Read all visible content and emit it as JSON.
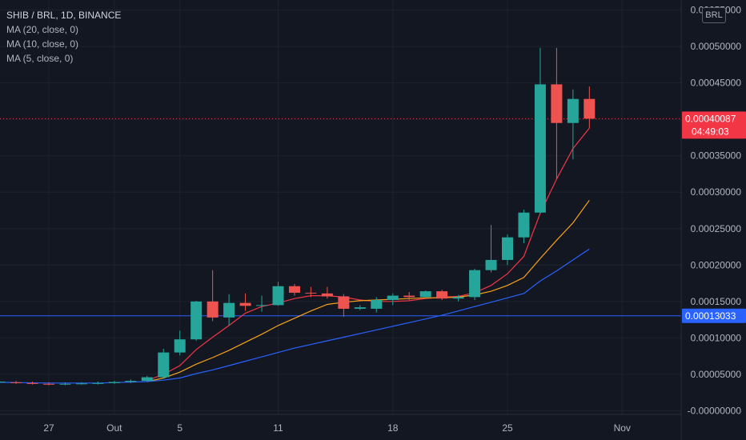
{
  "legend": {
    "symbol": "SHIB / BRL, 1D, BINANCE",
    "ma20": "MA (20, close, 0)",
    "ma10": "MA (10, close, 0)",
    "ma5": "MA (5, close, 0)"
  },
  "currency_badge": "BRL",
  "chart_data": {
    "type": "candlestick",
    "title": "SHIB / BRL, 1D, BINANCE",
    "x_ticks": [
      {
        "label": "27",
        "day": 0
      },
      {
        "label": "Out",
        "day": 4
      },
      {
        "label": "5",
        "day": 8
      },
      {
        "label": "11",
        "day": 14
      },
      {
        "label": "18",
        "day": 21
      },
      {
        "label": "25",
        "day": 28
      },
      {
        "label": "Nov",
        "day": 35
      }
    ],
    "y_ticks": [
      "-0.00000000",
      "0.00005000",
      "0.00010000",
      "0.00015000",
      "0.00020000",
      "0.00025000",
      "0.00030000",
      "0.00035000",
      "0.00040000",
      "0.00045000",
      "0.00050000",
      "0.00055000"
    ],
    "y_tick_values": [
      0,
      5e-05,
      0.0001,
      0.00015,
      0.0002,
      0.00025,
      0.0003,
      0.00035,
      0.0004,
      0.00045,
      0.0005,
      0.00055
    ],
    "ylim": [
      -5e-06,
      0.000555
    ],
    "x_range_days": [
      -3,
      39
    ],
    "candles": [
      {
        "d": -3,
        "o": 3.9e-05,
        "h": 4.1e-05,
        "l": 3.8e-05,
        "c": 4e-05
      },
      {
        "d": -2,
        "o": 3.9e-05,
        "h": 4.1e-05,
        "l": 3.7e-05,
        "c": 3.8e-05
      },
      {
        "d": -1,
        "o": 3.8e-05,
        "h": 4e-05,
        "l": 3.6e-05,
        "c": 3.7e-05
      },
      {
        "d": 0,
        "o": 3.7e-05,
        "h": 3.9e-05,
        "l": 3.5e-05,
        "c": 3.6e-05
      },
      {
        "d": 1,
        "o": 3.6e-05,
        "h": 3.9e-05,
        "l": 3.5e-05,
        "c": 3.7e-05
      },
      {
        "d": 2,
        "o": 3.7e-05,
        "h": 3.9e-05,
        "l": 3.6e-05,
        "c": 3.75e-05
      },
      {
        "d": 3,
        "o": 3.75e-05,
        "h": 4e-05,
        "l": 3.6e-05,
        "c": 3.8e-05
      },
      {
        "d": 4,
        "o": 3.8e-05,
        "h": 4.1e-05,
        "l": 3.7e-05,
        "c": 3.95e-05
      },
      {
        "d": 5,
        "o": 3.95e-05,
        "h": 4.3e-05,
        "l": 3.8e-05,
        "c": 4.1e-05
      },
      {
        "d": 6,
        "o": 4.1e-05,
        "h": 4.8e-05,
        "l": 4e-05,
        "c": 4.6e-05
      },
      {
        "d": 7,
        "o": 4.6e-05,
        "h": 8.5e-05,
        "l": 4.4e-05,
        "c": 8e-05
      },
      {
        "d": 8,
        "o": 8e-05,
        "h": 0.00011,
        "l": 7.6e-05,
        "c": 9.8e-05
      },
      {
        "d": 9,
        "o": 9.8e-05,
        "h": 0.000151,
        "l": 9.6e-05,
        "c": 0.00015
      },
      {
        "d": 10,
        "o": 0.00015,
        "h": 0.000193,
        "l": 0.000123,
        "c": 0.000128
      },
      {
        "d": 11,
        "o": 0.000128,
        "h": 0.00016,
        "l": 0.000117,
        "c": 0.000148
      },
      {
        "d": 12,
        "o": 0.000148,
        "h": 0.000161,
        "l": 0.000137,
        "c": 0.000144
      },
      {
        "d": 13,
        "o": 0.000144,
        "h": 0.000158,
        "l": 0.000136,
        "c": 0.000145
      },
      {
        "d": 14,
        "o": 0.000145,
        "h": 0.000177,
        "l": 0.000144,
        "c": 0.000171
      },
      {
        "d": 15,
        "o": 0.000171,
        "h": 0.000174,
        "l": 0.000158,
        "c": 0.000162
      },
      {
        "d": 16,
        "o": 0.000162,
        "h": 0.00017,
        "l": 0.000156,
        "c": 0.000161
      },
      {
        "d": 17,
        "o": 0.000161,
        "h": 0.00017,
        "l": 0.000154,
        "c": 0.000157
      },
      {
        "d": 18,
        "o": 0.000157,
        "h": 0.00016,
        "l": 0.000129,
        "c": 0.00014
      },
      {
        "d": 19,
        "o": 0.00014,
        "h": 0.000145,
        "l": 0.000138,
        "c": 0.000142
      },
      {
        "d": 20,
        "o": 0.00014,
        "h": 0.000156,
        "l": 0.000135,
        "c": 0.000152
      },
      {
        "d": 21,
        "o": 0.000152,
        "h": 0.000161,
        "l": 0.000145,
        "c": 0.000158
      },
      {
        "d": 22,
        "o": 0.000158,
        "h": 0.000163,
        "l": 0.000152,
        "c": 0.000156
      },
      {
        "d": 23,
        "o": 0.000156,
        "h": 0.000165,
        "l": 0.000154,
        "c": 0.000164
      },
      {
        "d": 24,
        "o": 0.000164,
        "h": 0.000166,
        "l": 0.000152,
        "c": 0.000154
      },
      {
        "d": 25,
        "o": 0.000154,
        "h": 0.000159,
        "l": 0.00015,
        "c": 0.000156
      },
      {
        "d": 26,
        "o": 0.000156,
        "h": 0.000195,
        "l": 0.000152,
        "c": 0.000193
      },
      {
        "d": 27,
        "o": 0.000193,
        "h": 0.000255,
        "l": 0.00019,
        "c": 0.000207
      },
      {
        "d": 28,
        "o": 0.000207,
        "h": 0.000242,
        "l": 0.0002,
        "c": 0.000238
      },
      {
        "d": 29,
        "o": 0.000238,
        "h": 0.000276,
        "l": 0.00023,
        "c": 0.000272
      },
      {
        "d": 30,
        "o": 0.000272,
        "h": 0.000498,
        "l": 0.00027,
        "c": 0.000448
      },
      {
        "d": 31,
        "o": 0.000448,
        "h": 0.000498,
        "l": 0.000318,
        "c": 0.000395
      },
      {
        "d": 32,
        "o": 0.000395,
        "h": 0.000441,
        "l": 0.000345,
        "c": 0.000428
      },
      {
        "d": 33,
        "o": 0.000428,
        "h": 0.000445,
        "l": 0.000388,
        "c": 0.0004009
      }
    ],
    "ma_series": [
      {
        "name": "MA (5, close, 0)",
        "color": "#f23645",
        "points": [
          [
            6,
            4.15e-05
          ],
          [
            7,
            5e-05
          ],
          [
            8,
            6.2e-05
          ],
          [
            9,
            8.4e-05
          ],
          [
            10,
            0.000101
          ],
          [
            11,
            0.000117
          ],
          [
            12,
            0.000134
          ],
          [
            13,
            0.000143
          ],
          [
            14,
            0.000148
          ],
          [
            15,
            0.000154
          ],
          [
            16,
            0.000158
          ],
          [
            17,
            0.000158
          ],
          [
            18,
            0.000156
          ],
          [
            19,
            0.000152
          ],
          [
            20,
            0.00015
          ],
          [
            21,
            0.00015
          ],
          [
            22,
            0.000151
          ],
          [
            23,
            0.000154
          ],
          [
            24,
            0.000156
          ],
          [
            25,
            0.000157
          ],
          [
            26,
            0.000162
          ],
          [
            27,
            0.000172
          ],
          [
            28,
            0.000188
          ],
          [
            29,
            0.000212
          ],
          [
            30,
            0.000271
          ],
          [
            31,
            0.000318
          ],
          [
            32,
            0.00036
          ],
          [
            33,
            0.000388
          ]
        ]
      },
      {
        "name": "MA (10, close, 0)",
        "color": "#f7a21b",
        "points": [
          [
            6,
            4e-05
          ],
          [
            7,
            4.5e-05
          ],
          [
            8,
            5.3e-05
          ],
          [
            9,
            6.4e-05
          ],
          [
            10,
            7.3e-05
          ],
          [
            11,
            8.3e-05
          ],
          [
            12,
            9.4e-05
          ],
          [
            13,
            0.000105
          ],
          [
            14,
            0.000117
          ],
          [
            15,
            0.000127
          ],
          [
            16,
            0.000137
          ],
          [
            17,
            0.000146
          ],
          [
            18,
            0.000149
          ],
          [
            19,
            0.000151
          ],
          [
            20,
            0.000152
          ],
          [
            21,
            0.000153
          ],
          [
            22,
            0.000154
          ],
          [
            23,
            0.000155
          ],
          [
            24,
            0.000155
          ],
          [
            25,
            0.000156
          ],
          [
            26,
            0.000159
          ],
          [
            27,
            0.000164
          ],
          [
            28,
            0.000172
          ],
          [
            29,
            0.000183
          ],
          [
            30,
            0.000209
          ],
          [
            31,
            0.000234
          ],
          [
            32,
            0.000258
          ],
          [
            33,
            0.000289
          ]
        ]
      },
      {
        "name": "MA (20, close, 0)",
        "color": "#2962ff",
        "points": [
          [
            -3,
            3.9e-05
          ],
          [
            0,
            3.8e-05
          ],
          [
            3,
            3.8e-05
          ],
          [
            6,
            4e-05
          ],
          [
            7,
            4.2e-05
          ],
          [
            8,
            4.5e-05
          ],
          [
            9,
            5.1e-05
          ],
          [
            10,
            5.6e-05
          ],
          [
            11,
            6.2e-05
          ],
          [
            12,
            6.8e-05
          ],
          [
            13,
            7.4e-05
          ],
          [
            14,
            8e-05
          ],
          [
            15,
            8.6e-05
          ],
          [
            16,
            9.1e-05
          ],
          [
            17,
            9.6e-05
          ],
          [
            18,
            0.000101
          ],
          [
            19,
            0.000106
          ],
          [
            20,
            0.000111
          ],
          [
            21,
            0.000116
          ],
          [
            22,
            0.000121
          ],
          [
            23,
            0.000126
          ],
          [
            24,
            0.000131
          ],
          [
            25,
            0.000137
          ],
          [
            26,
            0.000143
          ],
          [
            27,
            0.000149
          ],
          [
            28,
            0.000155
          ],
          [
            29,
            0.000161
          ],
          [
            30,
            0.000178
          ],
          [
            31,
            0.000192
          ],
          [
            32,
            0.000207
          ],
          [
            33,
            0.000222
          ]
        ]
      }
    ],
    "price_line": {
      "value": 0.00040087,
      "label": "0.00040087",
      "countdown": "04:49:03",
      "color": "#f23645"
    },
    "horizontal_line": {
      "value": 0.00013033,
      "label": "0.00013033",
      "color": "#2962ff"
    },
    "colors": {
      "up": "#26a69a",
      "down": "#ef5350",
      "grid": "#1e222d",
      "axis_text": "#b2b5be"
    }
  }
}
